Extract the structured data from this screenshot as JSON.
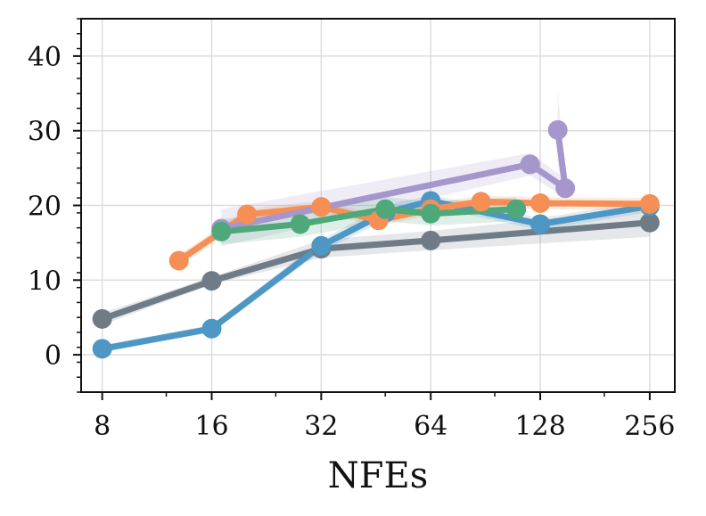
{
  "chart_data": {
    "type": "line",
    "title": "",
    "xlabel": "NFEs",
    "ylabel": "",
    "xscale": "log2",
    "xlim": [
      7,
      300
    ],
    "ylim": [
      -5,
      45
    ],
    "x_ticks": [
      8,
      16,
      32,
      64,
      128,
      256
    ],
    "x_tick_labels": [
      "8",
      "16",
      "32",
      "64",
      "128",
      "256"
    ],
    "y_ticks": [
      0,
      10,
      20,
      30,
      40
    ],
    "y_tick_labels": [
      "0",
      "10",
      "20",
      "30",
      "40"
    ],
    "grid": true,
    "series": [
      {
        "name": "gray",
        "color": "#6f7b86",
        "x": [
          8,
          16,
          32,
          64,
          256
        ],
        "y": [
          4.8,
          9.9,
          14.2,
          15.3,
          17.7
        ],
        "band": [
          [
            4.0,
            5.6
          ],
          [
            9.4,
            10.4
          ],
          [
            13.0,
            15.4
          ],
          [
            14.0,
            16.6
          ],
          [
            15.8,
            19.6
          ]
        ]
      },
      {
        "name": "blue",
        "color": "#4e96c3",
        "x": [
          8,
          16,
          32,
          48,
          64,
          128,
          256
        ],
        "y": [
          0.8,
          3.5,
          14.6,
          19.0,
          20.6,
          17.5,
          19.9
        ],
        "band": [
          [
            0.3,
            1.3
          ],
          [
            3.0,
            4.0
          ],
          [
            13.8,
            15.4
          ],
          [
            18.0,
            20.0
          ],
          [
            19.8,
            21.4
          ],
          [
            16.7,
            18.3
          ],
          [
            19.1,
            20.7
          ]
        ]
      },
      {
        "name": "orange",
        "color": "#f58f55",
        "x": [
          13,
          20,
          32,
          46,
          64,
          88,
          128,
          256
        ],
        "y": [
          12.6,
          18.8,
          19.8,
          18.0,
          19.5,
          20.5,
          20.3,
          20.2
        ],
        "band": [
          [
            11.8,
            13.4
          ],
          [
            18.0,
            19.6
          ],
          [
            19.0,
            20.6
          ],
          [
            17.2,
            18.8
          ],
          [
            18.7,
            20.3
          ],
          [
            19.7,
            21.3
          ],
          [
            19.5,
            21.1
          ],
          [
            19.4,
            21.0
          ]
        ]
      },
      {
        "name": "purple",
        "color": "#a596cb",
        "x": [
          17,
          120,
          150,
          143
        ],
        "y": [
          16.9,
          25.5,
          22.3,
          30.1
        ],
        "band": [
          [
            14.5,
            19.5
          ],
          [
            24.0,
            27.0
          ],
          [
            21.0,
            23.6
          ],
          [
            25.5,
            35.5
          ]
        ]
      },
      {
        "name": "green",
        "color": "#4ea87a",
        "x": [
          17,
          28,
          48,
          64,
          110
        ],
        "y": [
          16.5,
          17.5,
          19.5,
          18.9,
          19.5
        ],
        "band": [
          [
            14.8,
            18.2
          ],
          [
            15.8,
            19.2
          ],
          [
            17.9,
            21.1
          ],
          [
            17.3,
            20.5
          ],
          [
            17.9,
            21.1
          ]
        ]
      }
    ]
  }
}
